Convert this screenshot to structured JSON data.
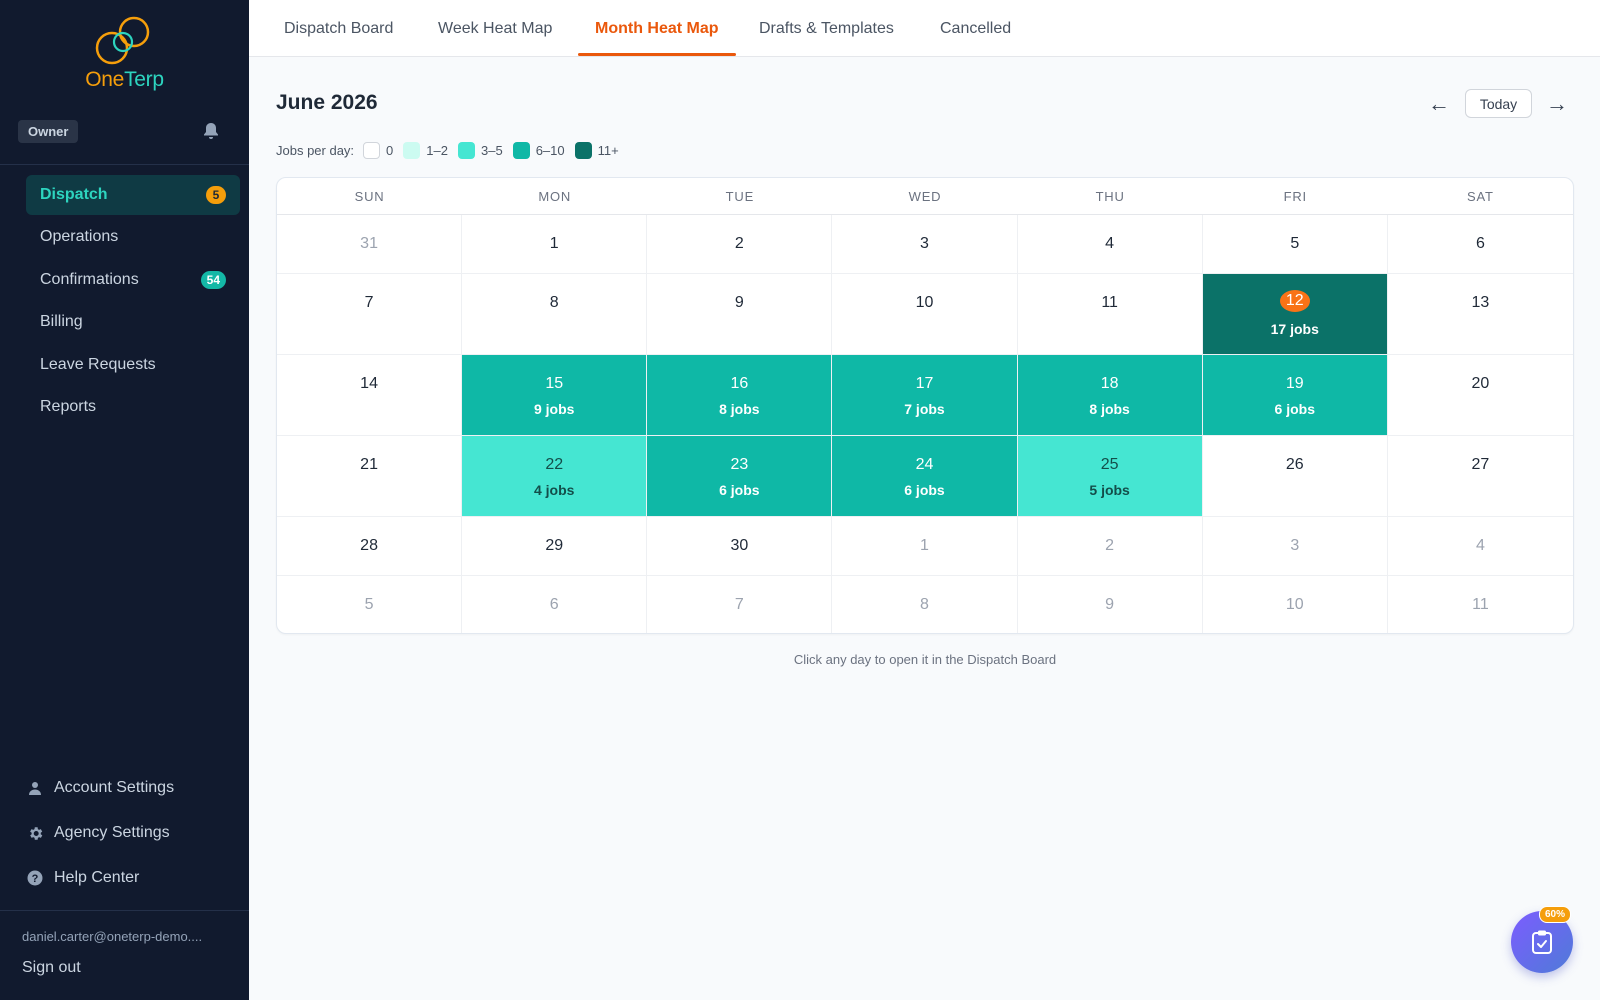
{
  "brand": {
    "name_part1": "One",
    "name_part2": "Terp",
    "accent_orange": "#f59e0b",
    "accent_teal": "#2dd4bf"
  },
  "sidebar": {
    "role": "Owner",
    "notification_icon": "bell-icon",
    "items": [
      {
        "label": "Dispatch",
        "badge": "5",
        "active": true
      },
      {
        "label": "Operations",
        "badge": ""
      },
      {
        "label": "Confirmations",
        "badge": "54"
      },
      {
        "label": "Billing",
        "badge": ""
      },
      {
        "label": "Leave Requests",
        "badge": ""
      },
      {
        "label": "Reports",
        "badge": ""
      }
    ],
    "bottom": [
      {
        "label": "Account Settings",
        "icon": "user-icon"
      },
      {
        "label": "Agency Settings",
        "icon": "gear-icon"
      },
      {
        "label": "Help Center",
        "icon": "help-icon"
      }
    ],
    "user_email": "daniel.carter@oneterp-demo....",
    "sign_out": "Sign out"
  },
  "tabs": [
    {
      "label": "Dispatch Board"
    },
    {
      "label": "Week Heat Map"
    },
    {
      "label": "Month Heat Map",
      "active": true
    },
    {
      "label": "Drafts & Templates"
    },
    {
      "label": "Cancelled"
    }
  ],
  "header": {
    "month_title": "June 2026",
    "prev": "←",
    "today": "Today",
    "next": "→"
  },
  "legend": {
    "label": "Jobs per day:",
    "items": [
      {
        "label": "0",
        "color": "#ffffff"
      },
      {
        "label": "1–2",
        "color": "#ccfbf1"
      },
      {
        "label": "3–5",
        "color": "#45e6d2"
      },
      {
        "label": "6–10",
        "color": "#0fb8a6"
      },
      {
        "label": "11+",
        "color": "#0b7268"
      }
    ]
  },
  "calendar": {
    "weekdays": [
      "SUN",
      "MON",
      "TUE",
      "WED",
      "THU",
      "FRI",
      "SAT"
    ],
    "weeks": [
      [
        {
          "day": "31",
          "muted": true
        },
        {
          "day": "1"
        },
        {
          "day": "2"
        },
        {
          "day": "3"
        },
        {
          "day": "4"
        },
        {
          "day": "5"
        },
        {
          "day": "6"
        }
      ],
      [
        {
          "day": "7"
        },
        {
          "day": "8"
        },
        {
          "day": "9"
        },
        {
          "day": "10"
        },
        {
          "day": "11"
        },
        {
          "day": "12",
          "jobs": "17 jobs",
          "level": 5,
          "today": true
        },
        {
          "day": "13"
        }
      ],
      [
        {
          "day": "14"
        },
        {
          "day": "15",
          "jobs": "9 jobs",
          "level": 4
        },
        {
          "day": "16",
          "jobs": "8 jobs",
          "level": 4
        },
        {
          "day": "17",
          "jobs": "7 jobs",
          "level": 4
        },
        {
          "day": "18",
          "jobs": "8 jobs",
          "level": 4
        },
        {
          "day": "19",
          "jobs": "6 jobs",
          "level": 4
        },
        {
          "day": "20"
        }
      ],
      [
        {
          "day": "21"
        },
        {
          "day": "22",
          "jobs": "4 jobs",
          "level": 3
        },
        {
          "day": "23",
          "jobs": "6 jobs",
          "level": 4
        },
        {
          "day": "24",
          "jobs": "6 jobs",
          "level": 4
        },
        {
          "day": "25",
          "jobs": "5 jobs",
          "level": 3
        },
        {
          "day": "26"
        },
        {
          "day": "27"
        }
      ],
      [
        {
          "day": "28"
        },
        {
          "day": "29"
        },
        {
          "day": "30"
        },
        {
          "day": "1",
          "muted": true
        },
        {
          "day": "2",
          "muted": true
        },
        {
          "day": "3",
          "muted": true
        },
        {
          "day": "4",
          "muted": true
        }
      ],
      [
        {
          "day": "5",
          "muted": true
        },
        {
          "day": "6",
          "muted": true
        },
        {
          "day": "7",
          "muted": true
        },
        {
          "day": "8",
          "muted": true
        },
        {
          "day": "9",
          "muted": true
        },
        {
          "day": "10",
          "muted": true
        },
        {
          "day": "11",
          "muted": true
        }
      ]
    ]
  },
  "hint": "Click any day to open it in the Dispatch Board",
  "fab": {
    "badge": "60%",
    "icon": "clipboard-check-icon"
  }
}
